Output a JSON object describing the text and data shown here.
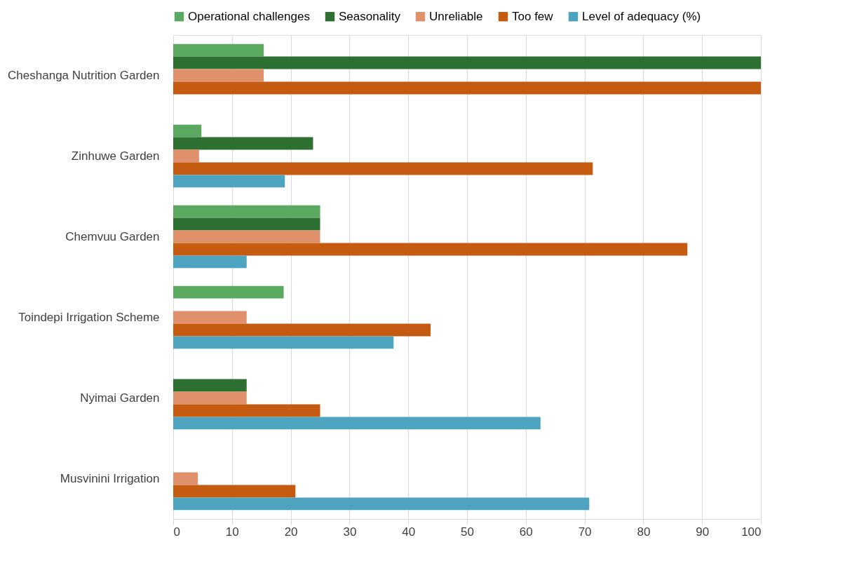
{
  "chart_data": {
    "type": "bar",
    "orientation": "horizontal",
    "categories": [
      "Cheshanga Nutrition Garden",
      "Zinhuwe Garden",
      "Chemvuu Garden",
      "Toindepi Irrigation Scheme",
      "Nyimai Garden",
      "Musvinini Irrigation"
    ],
    "series": [
      {
        "name": "Operational challenges",
        "color": "#5ba860",
        "values": [
          15.4,
          4.8,
          25,
          18.8,
          null,
          null
        ]
      },
      {
        "name": "Seasonality",
        "color": "#2e7031",
        "values": [
          100,
          23.8,
          25,
          null,
          12.5,
          null
        ]
      },
      {
        "name": "Unreliable",
        "color": "#e0906a",
        "values": [
          15.4,
          4.4,
          25,
          12.5,
          12.5,
          4.2
        ]
      },
      {
        "name": "Too few",
        "color": "#c55a11",
        "values": [
          100,
          71.4,
          87.5,
          43.8,
          25,
          20.8
        ]
      },
      {
        "name": "Level of adequacy (%)",
        "color": "#4ea3bf",
        "values": [
          null,
          19,
          12.5,
          37.5,
          62.5,
          70.8
        ]
      }
    ],
    "xlim": [
      0,
      100
    ],
    "xticks": [
      0,
      10,
      20,
      30,
      40,
      50,
      60,
      70,
      80,
      90,
      100
    ],
    "grid": "x",
    "legend": "top"
  }
}
